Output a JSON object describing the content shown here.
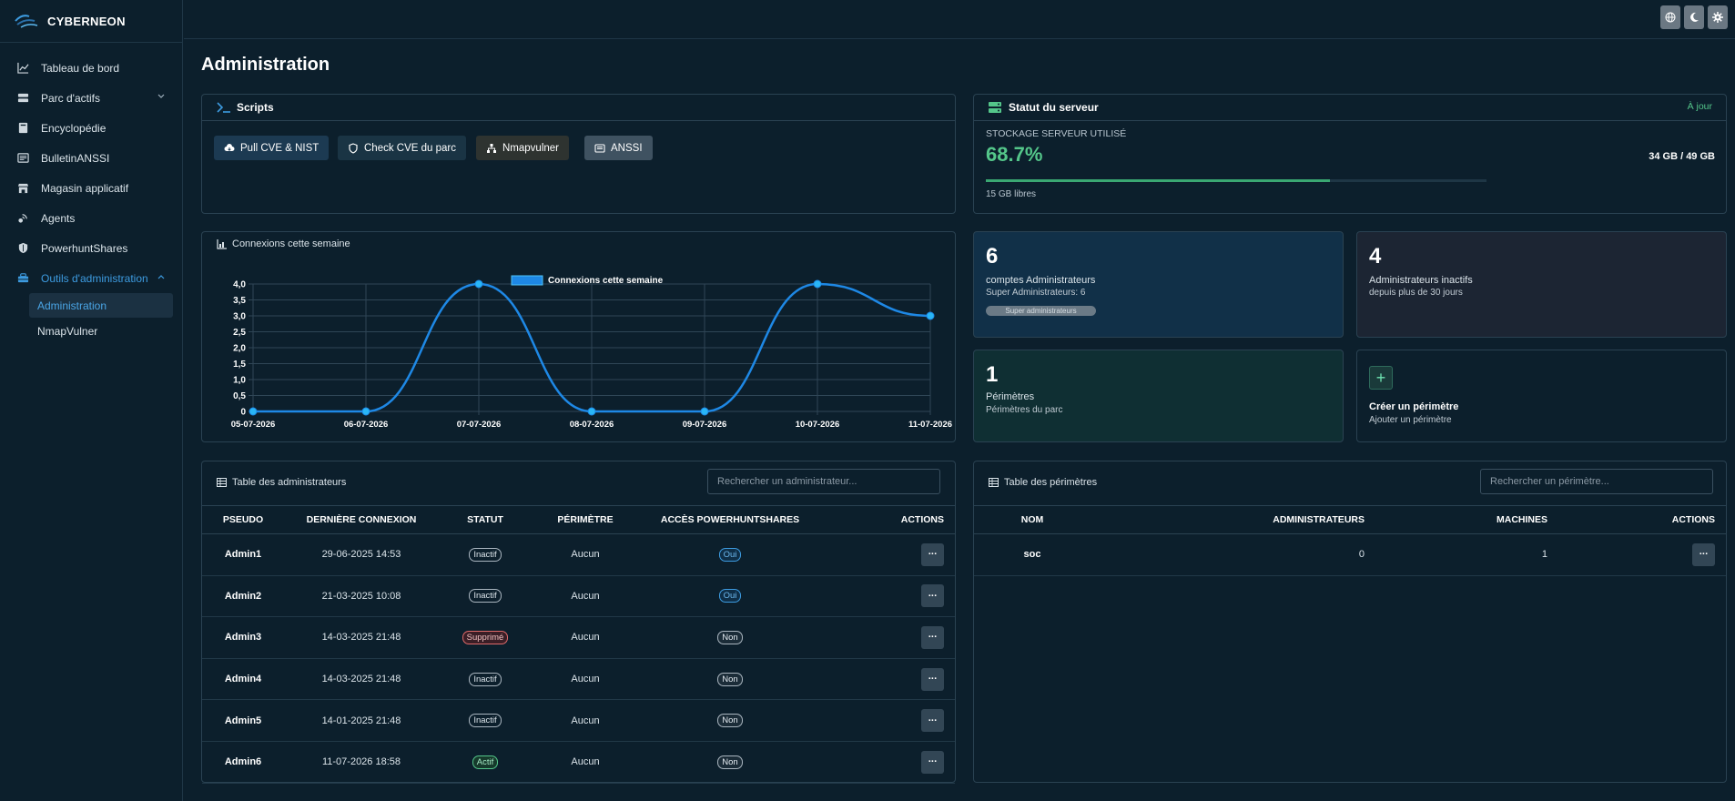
{
  "brand": {
    "name": "CYBERNEON"
  },
  "sidebar": {
    "items": [
      {
        "label": "Tableau de bord",
        "icon": "chart-line-icon"
      },
      {
        "label": "Parc d'actifs",
        "icon": "server-icon"
      },
      {
        "label": "Encyclopédie",
        "icon": "book-icon"
      },
      {
        "label": "BulletinANSSI",
        "icon": "newspaper-icon"
      },
      {
        "label": "Magasin applicatif",
        "icon": "store-icon"
      },
      {
        "label": "Agents",
        "icon": "satellite-icon"
      },
      {
        "label": "PowerhuntShares",
        "icon": "shield-icon"
      },
      {
        "label": "Outils d'administration",
        "icon": "toolbox-icon"
      }
    ],
    "subitems": [
      {
        "label": "Administration"
      },
      {
        "label": "NmapVulner"
      }
    ]
  },
  "topbar": {
    "buttons": [
      "globe-icon",
      "moon-icon",
      "gear-icon"
    ]
  },
  "page": {
    "title": "Administration"
  },
  "scripts": {
    "title": "Scripts",
    "buttons": [
      {
        "label": "Pull CVE & NIST",
        "color": "#1c3a52"
      },
      {
        "label": "Check CVE du parc",
        "color": "#1a3444"
      },
      {
        "label": "Nmapvulner",
        "color": "#2e3330"
      },
      {
        "label": "ANSSI",
        "color": "#3f5261"
      }
    ]
  },
  "server": {
    "title": "Statut du serveur",
    "status": "À jour",
    "storage_label": "STOCKAGE SERVEUR UTILISÉ",
    "percent_text": "68.7%",
    "used_fraction": 0.687,
    "size": "34 GB / 49 GB",
    "free": "15 GB libres"
  },
  "stats": {
    "admins": {
      "number": "6",
      "label": "comptes Administrateurs",
      "sub": "Super Administrateurs: 6",
      "badge": "Super administrateurs"
    },
    "inactive": {
      "number": "4",
      "label": "Administrateurs inactifs",
      "sub": "depuis plus de 30 jours"
    },
    "perimeters": {
      "number": "1",
      "label": "Périmètres",
      "sub": "Périmètres du parc"
    },
    "create": {
      "label": "Créer un périmètre",
      "sub": "Ajouter un périmètre"
    }
  },
  "chart_card": {
    "title": "Connexions cette semaine"
  },
  "chart_data": {
    "type": "line",
    "title": "",
    "legend": "Connexions cette semaine",
    "legend_position": "top-center",
    "x": [
      "05-07-2026",
      "06-07-2026",
      "07-07-2026",
      "08-07-2026",
      "09-07-2026",
      "10-07-2026",
      "11-07-2026"
    ],
    "series": [
      {
        "name": "Connexions cette semaine",
        "values": [
          0,
          0,
          4,
          0,
          0,
          4,
          3
        ]
      }
    ],
    "ylim": [
      0,
      4
    ],
    "yticks": [
      "0",
      "0,5",
      "1,0",
      "1,5",
      "2,0",
      "2,5",
      "3,0",
      "3,5",
      "4,0"
    ],
    "grid": true,
    "color": "#1e88e5"
  },
  "admins_table": {
    "title": "Table des administrateurs",
    "search_placeholder": "Rechercher un administrateur...",
    "columns": [
      "PSEUDO",
      "DERNIÈRE CONNEXION",
      "STATUT",
      "PÉRIMÈTRE",
      "ACCÈS POWERHUNTSHARES",
      "ACTIONS"
    ],
    "rows": [
      {
        "pseudo": "Admin1",
        "last": "29-06-2025 14:53",
        "status": "Inactif",
        "status_kind": "ina",
        "perimeter": "Aucun",
        "access": "Oui",
        "access_kind": "oui"
      },
      {
        "pseudo": "Admin2",
        "last": "21-03-2025 10:08",
        "status": "Inactif",
        "status_kind": "ina",
        "perimeter": "Aucun",
        "access": "Oui",
        "access_kind": "oui"
      },
      {
        "pseudo": "Admin3",
        "last": "14-03-2025 21:48",
        "status": "Supprimé",
        "status_kind": "sup",
        "perimeter": "Aucun",
        "access": "Non",
        "access_kind": "non"
      },
      {
        "pseudo": "Admin4",
        "last": "14-03-2025 21:48",
        "status": "Inactif",
        "status_kind": "ina",
        "perimeter": "Aucun",
        "access": "Non",
        "access_kind": "non"
      },
      {
        "pseudo": "Admin5",
        "last": "14-01-2025 21:48",
        "status": "Inactif",
        "status_kind": "ina",
        "perimeter": "Aucun",
        "access": "Non",
        "access_kind": "non"
      },
      {
        "pseudo": "Admin6",
        "last": "11-07-2026 18:58",
        "status": "Actif",
        "status_kind": "act",
        "perimeter": "Aucun",
        "access": "Non",
        "access_kind": "non"
      }
    ],
    "action_label": "···"
  },
  "perimeters_table": {
    "title": "Table des périmètres",
    "search_placeholder": "Rechercher un périmètre...",
    "columns": [
      "NOM",
      "ADMINISTRATEURS",
      "MACHINES",
      "ACTIONS"
    ],
    "rows": [
      {
        "name": "soc",
        "admins": "0",
        "machines": "1"
      }
    ],
    "action_label": "···"
  }
}
